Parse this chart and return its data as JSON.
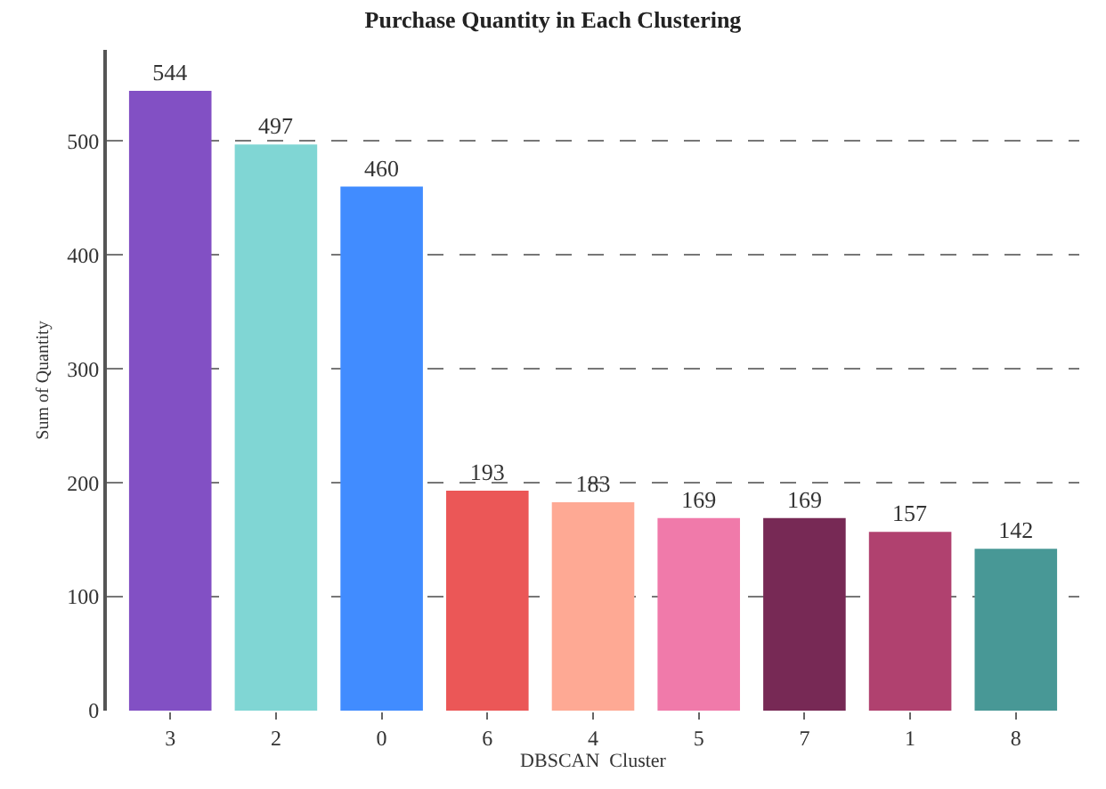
{
  "chart_data": {
    "type": "bar",
    "title": "Purchase Quantity in Each Clustering",
    "xlabel": "DBSCAN  Cluster",
    "ylabel": "Sum of Quantity",
    "categories": [
      "3",
      "2",
      "0",
      "6",
      "4",
      "5",
      "7",
      "1",
      "8"
    ],
    "values": [
      544,
      497,
      460,
      193,
      183,
      169,
      169,
      157,
      142
    ],
    "colors": [
      "#8250c4",
      "#80d6d4",
      "#418cff",
      "#eb5757",
      "#fea994",
      "#f07aaa",
      "#772955",
      "#b0416f",
      "#489896"
    ],
    "ylim": [
      0,
      580
    ],
    "yticks": [
      0,
      100,
      200,
      300,
      400,
      500
    ],
    "grid": "y",
    "data_labels": true,
    "legend": false
  }
}
